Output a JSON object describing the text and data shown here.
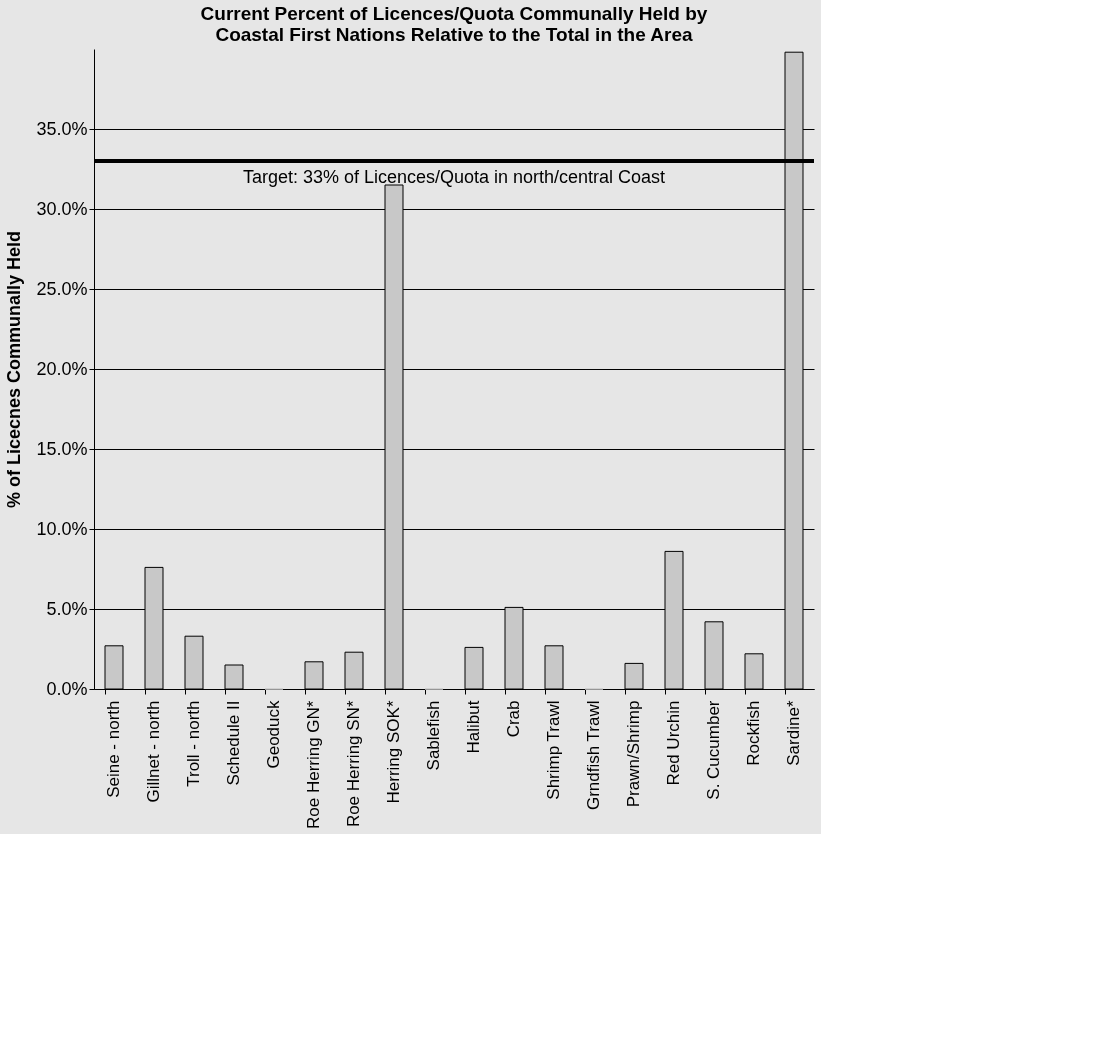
{
  "chart_data": {
    "type": "bar",
    "title": "Current Percent of Licences/Quota Communally Held by\nCoastal First Nations Relative to the Total in the Area",
    "ylabel": "% of Licecnes Communally Held",
    "categories": [
      "Seine - north",
      "Gillnet - north",
      "Troll - north",
      "Schedule II",
      "Geoduck",
      "Roe Herring GN*",
      "Roe Herring SN*",
      "Herring SOK*",
      "Sablefish",
      "Halibut",
      "Crab",
      "Shrimp Trawl",
      "Grndfish Trawl",
      "Prawn/Shrimp",
      "Red Urchin",
      "S. Cucumber",
      "Rockfish",
      "Sardine*"
    ],
    "values": [
      2.7,
      7.6,
      3.3,
      1.5,
      0,
      1.7,
      2.3,
      31.5,
      0,
      2.6,
      5.1,
      2.7,
      0,
      1.6,
      8.6,
      4.2,
      2.2,
      39.8
    ],
    "color": "#c8c8c8",
    "ylim": [
      0,
      40
    ],
    "yticks": [
      {
        "value": 0,
        "label": "0.0%"
      },
      {
        "value": 5,
        "label": "5.0%"
      },
      {
        "value": 10,
        "label": "10.0%"
      },
      {
        "value": 15,
        "label": "15.0%"
      },
      {
        "value": 20,
        "label": "20.0%"
      },
      {
        "value": 25,
        "label": "25.0%"
      },
      {
        "value": 30,
        "label": "30.0%"
      },
      {
        "value": 35,
        "label": "35.0%"
      }
    ],
    "grid": "y",
    "ref_lines": [
      {
        "axis": "y",
        "value": 33,
        "label": "Target: 33% of Licences/Quota in north/central Coast",
        "color": "#000000"
      }
    ]
  }
}
